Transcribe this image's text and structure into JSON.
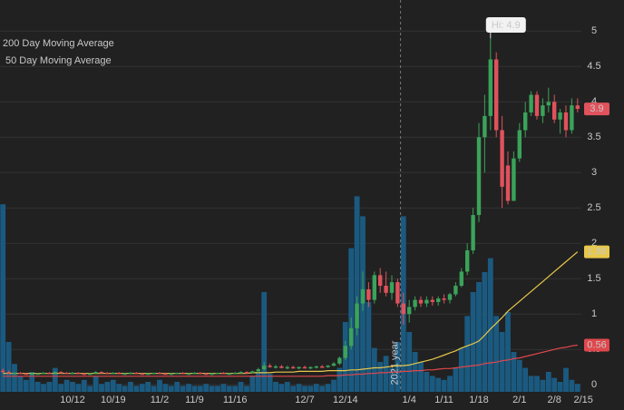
{
  "chart_data": {
    "type": "candlestick",
    "hi_label": "Hi: 4.9",
    "year_marker": "2021 year",
    "up_color": "#3aa35a",
    "down_color": "#e0525c",
    "volume_color": "#1b5a80",
    "ylim": [
      -0.1,
      5.44
    ],
    "yticks": [
      0,
      0.5,
      1,
      1.5,
      2,
      2.5,
      3,
      3.5,
      4,
      4.5,
      5
    ],
    "grid": true,
    "vlim": [
      0,
      100
    ],
    "categories": [
      null,
      null,
      null,
      null,
      null,
      null,
      null,
      null,
      null,
      null,
      null,
      null,
      "10/12",
      null,
      null,
      null,
      null,
      null,
      null,
      "10/19",
      null,
      null,
      null,
      null,
      null,
      null,
      null,
      "11/2",
      null,
      null,
      null,
      null,
      null,
      "11/9",
      null,
      null,
      null,
      null,
      null,
      null,
      "11/16",
      null,
      null,
      null,
      null,
      null,
      null,
      null,
      null,
      null,
      null,
      null,
      "12/7",
      null,
      null,
      null,
      null,
      null,
      null,
      "12/14",
      null,
      null,
      null,
      null,
      null,
      null,
      null,
      null,
      null,
      null,
      "1/4",
      null,
      null,
      null,
      null,
      null,
      "1/11",
      null,
      null,
      null,
      null,
      null,
      "1/18",
      null,
      null,
      null,
      null,
      null,
      null,
      "2/1",
      null,
      null,
      null,
      null,
      null,
      "2/8",
      null,
      null,
      null,
      null,
      "2/15"
    ],
    "candles": [
      [
        0.2,
        0.23,
        0.17,
        0.18
      ],
      [
        0.18,
        0.2,
        0.15,
        0.16
      ],
      [
        0.16,
        0.18,
        0.14,
        0.17
      ],
      [
        0.17,
        0.18,
        0.15,
        0.16
      ],
      [
        0.16,
        0.17,
        0.14,
        0.15
      ],
      [
        0.15,
        0.17,
        0.14,
        0.16
      ],
      [
        0.16,
        0.17,
        0.15,
        0.16
      ],
      [
        0.16,
        0.18,
        0.15,
        0.17
      ],
      [
        0.17,
        0.18,
        0.15,
        0.16
      ],
      [
        0.16,
        0.19,
        0.15,
        0.18
      ],
      [
        0.18,
        0.19,
        0.16,
        0.17
      ],
      [
        0.17,
        0.18,
        0.15,
        0.16
      ],
      [
        0.16,
        0.18,
        0.15,
        0.17
      ],
      [
        0.17,
        0.18,
        0.15,
        0.16
      ],
      [
        0.16,
        0.17,
        0.14,
        0.15
      ],
      [
        0.15,
        0.17,
        0.14,
        0.16
      ],
      [
        0.16,
        0.19,
        0.15,
        0.18
      ],
      [
        0.18,
        0.19,
        0.16,
        0.17
      ],
      [
        0.17,
        0.18,
        0.15,
        0.16
      ],
      [
        0.16,
        0.18,
        0.15,
        0.17
      ],
      [
        0.17,
        0.18,
        0.15,
        0.16
      ],
      [
        0.16,
        0.17,
        0.15,
        0.16
      ],
      [
        0.16,
        0.18,
        0.15,
        0.17
      ],
      [
        0.17,
        0.18,
        0.16,
        0.16
      ],
      [
        0.16,
        0.17,
        0.15,
        0.15
      ],
      [
        0.15,
        0.17,
        0.14,
        0.16
      ],
      [
        0.16,
        0.17,
        0.15,
        0.17
      ],
      [
        0.17,
        0.18,
        0.15,
        0.16
      ],
      [
        0.16,
        0.17,
        0.15,
        0.15
      ],
      [
        0.15,
        0.17,
        0.14,
        0.16
      ],
      [
        0.16,
        0.17,
        0.15,
        0.17
      ],
      [
        0.17,
        0.18,
        0.15,
        0.16
      ],
      [
        0.16,
        0.17,
        0.15,
        0.16
      ],
      [
        0.16,
        0.18,
        0.15,
        0.17
      ],
      [
        0.17,
        0.18,
        0.16,
        0.16
      ],
      [
        0.16,
        0.17,
        0.15,
        0.15
      ],
      [
        0.15,
        0.17,
        0.14,
        0.16
      ],
      [
        0.16,
        0.17,
        0.15,
        0.17
      ],
      [
        0.17,
        0.18,
        0.15,
        0.16
      ],
      [
        0.16,
        0.17,
        0.15,
        0.16
      ],
      [
        0.16,
        0.18,
        0.15,
        0.17
      ],
      [
        0.17,
        0.19,
        0.16,
        0.18
      ],
      [
        0.18,
        0.19,
        0.16,
        0.17
      ],
      [
        0.17,
        0.2,
        0.16,
        0.19
      ],
      [
        0.19,
        0.24,
        0.17,
        0.22
      ],
      [
        0.22,
        0.32,
        0.2,
        0.27
      ],
      [
        0.27,
        0.3,
        0.24,
        0.25
      ],
      [
        0.25,
        0.28,
        0.23,
        0.26
      ],
      [
        0.26,
        0.28,
        0.23,
        0.24
      ],
      [
        0.24,
        0.27,
        0.22,
        0.25
      ],
      [
        0.25,
        0.27,
        0.23,
        0.24
      ],
      [
        0.24,
        0.26,
        0.22,
        0.25
      ],
      [
        0.25,
        0.27,
        0.23,
        0.24
      ],
      [
        0.24,
        0.26,
        0.22,
        0.25
      ],
      [
        0.25,
        0.27,
        0.23,
        0.26
      ],
      [
        0.26,
        0.28,
        0.24,
        0.25
      ],
      [
        0.25,
        0.28,
        0.24,
        0.27
      ],
      [
        0.27,
        0.32,
        0.26,
        0.3
      ],
      [
        0.3,
        0.4,
        0.28,
        0.38
      ],
      [
        0.38,
        0.62,
        0.35,
        0.55
      ],
      [
        0.55,
        0.95,
        0.5,
        0.8
      ],
      [
        0.8,
        1.25,
        0.7,
        1.15
      ],
      [
        1.15,
        1.6,
        1.05,
        1.35
      ],
      [
        1.35,
        1.45,
        1.1,
        1.2
      ],
      [
        1.2,
        1.6,
        1.15,
        1.55
      ],
      [
        1.55,
        1.65,
        1.3,
        1.4
      ],
      [
        1.4,
        1.6,
        1.25,
        1.3
      ],
      [
        1.3,
        1.55,
        1.2,
        1.45
      ],
      [
        1.45,
        1.5,
        1.1,
        1.15
      ],
      [
        1.15,
        1.3,
        0.85,
        1.0
      ],
      [
        1.0,
        1.2,
        0.88,
        1.1
      ],
      [
        1.1,
        1.25,
        1.05,
        1.2
      ],
      [
        1.2,
        1.25,
        1.1,
        1.15
      ],
      [
        1.15,
        1.25,
        1.1,
        1.2
      ],
      [
        1.2,
        1.25,
        1.12,
        1.17
      ],
      [
        1.17,
        1.25,
        1.12,
        1.22
      ],
      [
        1.22,
        1.28,
        1.15,
        1.2
      ],
      [
        1.2,
        1.3,
        1.15,
        1.28
      ],
      [
        1.28,
        1.45,
        1.25,
        1.4
      ],
      [
        1.4,
        1.65,
        1.38,
        1.6
      ],
      [
        1.6,
        2.0,
        1.55,
        1.9
      ],
      [
        1.9,
        2.5,
        1.85,
        2.4
      ],
      [
        2.4,
        3.7,
        2.3,
        3.5
      ],
      [
        3.5,
        4.1,
        3.0,
        3.8
      ],
      [
        3.8,
        4.9,
        3.6,
        4.6
      ],
      [
        4.6,
        4.7,
        3.5,
        3.6
      ],
      [
        3.6,
        3.8,
        2.5,
        2.8
      ],
      [
        3.1,
        3.3,
        2.55,
        2.6
      ],
      [
        2.6,
        3.3,
        2.6,
        3.2
      ],
      [
        3.2,
        3.7,
        3.15,
        3.6
      ],
      [
        3.6,
        4.0,
        3.5,
        3.85
      ],
      [
        3.85,
        4.15,
        3.8,
        4.1
      ],
      [
        4.1,
        4.15,
        3.75,
        3.8
      ],
      [
        3.8,
        4.05,
        3.7,
        3.95
      ],
      [
        3.95,
        4.2,
        3.85,
        4.0
      ],
      [
        4.0,
        4.1,
        3.7,
        3.75
      ],
      [
        3.75,
        3.9,
        3.55,
        3.85
      ],
      [
        3.85,
        3.95,
        3.5,
        3.6
      ],
      [
        3.6,
        4.05,
        3.55,
        3.95
      ],
      [
        3.95,
        4.05,
        3.85,
        3.9
      ],
      null
    ],
    "volume": [
      94,
      25,
      14,
      8,
      6,
      10,
      5,
      4,
      5,
      12,
      4,
      6,
      5,
      4,
      6,
      3,
      8,
      4,
      5,
      6,
      4,
      3,
      5,
      3,
      4,
      5,
      3,
      6,
      4,
      3,
      5,
      3,
      4,
      3,
      3,
      4,
      3,
      3,
      4,
      3,
      3,
      5,
      3,
      8,
      10,
      50,
      9,
      5,
      4,
      5,
      3,
      4,
      3,
      3,
      4,
      3,
      4,
      6,
      12,
      35,
      72,
      98,
      88,
      45,
      22,
      15,
      18,
      12,
      25,
      88,
      30,
      20,
      15,
      10,
      8,
      7,
      6,
      8,
      12,
      22,
      38,
      50,
      55,
      60,
      67,
      38,
      30,
      40,
      20,
      16,
      12,
      8,
      8,
      6,
      10,
      7,
      5,
      12,
      6,
      4,
      null
    ],
    "series": [
      {
        "name": "50 Day Moving Average",
        "color": "#e8c84a",
        "values": [
          0.16,
          0.16,
          0.16,
          0.16,
          0.16,
          0.16,
          0.16,
          0.16,
          0.16,
          0.16,
          0.16,
          0.16,
          0.16,
          0.16,
          0.16,
          0.16,
          0.16,
          0.16,
          0.16,
          0.16,
          0.16,
          0.16,
          0.16,
          0.16,
          0.16,
          0.16,
          0.16,
          0.16,
          0.16,
          0.16,
          0.16,
          0.16,
          0.16,
          0.16,
          0.16,
          0.16,
          0.16,
          0.16,
          0.16,
          0.16,
          0.16,
          0.16,
          0.16,
          0.17,
          0.17,
          0.17,
          0.17,
          0.18,
          0.18,
          0.18,
          0.18,
          0.19,
          0.19,
          0.19,
          0.19,
          0.19,
          0.2,
          0.2,
          0.2,
          0.2,
          0.21,
          0.21,
          0.22,
          0.23,
          0.24,
          0.24,
          0.25,
          0.26,
          0.27,
          0.27,
          0.28,
          0.3,
          0.32,
          0.34,
          0.36,
          0.39,
          0.42,
          0.45,
          0.48,
          0.52,
          0.55,
          0.58,
          0.62,
          0.7,
          0.79,
          0.87,
          0.95,
          1.04,
          1.11,
          1.18,
          1.25,
          1.32,
          1.39,
          1.46,
          1.53,
          1.6,
          1.67,
          1.74,
          1.81,
          1.88,
          null
        ]
      },
      {
        "name": "200 Day Moving Average",
        "color": "#e0474c",
        "values": [
          0.12,
          0.12,
          0.12,
          0.12,
          0.12,
          0.12,
          0.12,
          0.12,
          0.12,
          0.12,
          0.12,
          0.12,
          0.12,
          0.12,
          0.12,
          0.12,
          0.12,
          0.12,
          0.12,
          0.12,
          0.12,
          0.12,
          0.12,
          0.12,
          0.12,
          0.12,
          0.12,
          0.12,
          0.12,
          0.12,
          0.12,
          0.12,
          0.12,
          0.12,
          0.12,
          0.12,
          0.12,
          0.12,
          0.12,
          0.12,
          0.12,
          0.12,
          0.12,
          0.12,
          0.12,
          0.12,
          0.12,
          0.12,
          0.12,
          0.12,
          0.12,
          0.12,
          0.12,
          0.12,
          0.12,
          0.12,
          0.13,
          0.13,
          0.13,
          0.14,
          0.14,
          0.15,
          0.15,
          0.16,
          0.16,
          0.17,
          0.17,
          0.18,
          0.18,
          0.19,
          0.19,
          0.2,
          0.2,
          0.21,
          0.21,
          0.22,
          0.23,
          0.23,
          0.24,
          0.25,
          0.26,
          0.27,
          0.28,
          0.3,
          0.31,
          0.32,
          0.34,
          0.35,
          0.37,
          0.38,
          0.4,
          0.42,
          0.44,
          0.46,
          0.48,
          0.5,
          0.52,
          0.53,
          0.55,
          0.56,
          null
        ]
      }
    ]
  }
}
